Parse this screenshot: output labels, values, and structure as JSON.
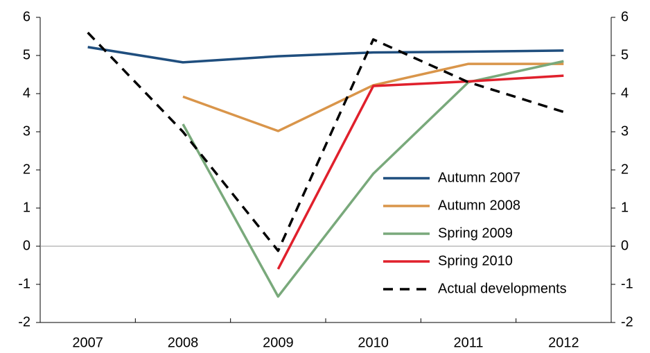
{
  "chart_data": {
    "type": "line",
    "categories": [
      "2007",
      "2008",
      "2009",
      "2010",
      "2011",
      "2012"
    ],
    "series": [
      {
        "name": "Autumn 2007",
        "color": "#1f4e7e",
        "values": [
          5.22,
          4.82,
          4.98,
          5.08,
          5.1,
          5.13
        ]
      },
      {
        "name": "Autumn 2008",
        "color": "#d9954a",
        "values": [
          null,
          3.92,
          3.02,
          4.22,
          4.78,
          4.78
        ]
      },
      {
        "name": "Spring 2009",
        "color": "#79a97b",
        "values": [
          null,
          3.2,
          -1.32,
          1.9,
          4.3,
          4.85
        ]
      },
      {
        "name": "Spring 2010",
        "color": "#e0202c",
        "values": [
          null,
          null,
          -0.6,
          4.2,
          4.32,
          4.47
        ]
      },
      {
        "name": "Actual developments",
        "color": "#000000",
        "dashed": true,
        "values": [
          5.6,
          3.0,
          -0.12,
          5.42,
          4.3,
          3.52
        ]
      }
    ],
    "ylim": [
      -2,
      6
    ],
    "yticks": [
      -2,
      -1,
      0,
      1,
      2,
      3,
      4,
      5,
      6
    ],
    "y2lim": [
      -2,
      6
    ],
    "y2ticks": [
      -2,
      -1,
      0,
      1,
      2,
      3,
      4,
      5,
      6
    ],
    "zero_line": true,
    "legend": "lower right"
  }
}
